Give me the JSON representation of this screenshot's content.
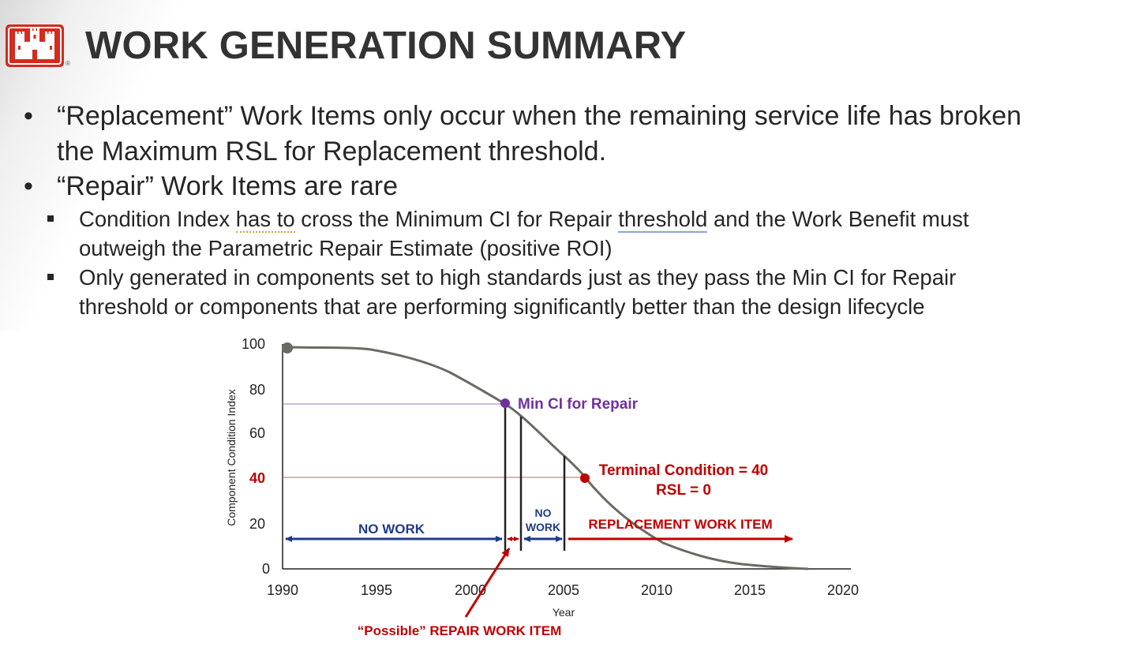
{
  "slide": {
    "title": "WORK GENERATION SUMMARY",
    "logo_icon": "castle-icon",
    "logo_mark": "®",
    "accent_color": "#d52b1e"
  },
  "bullets": {
    "b1_line1": "“Replacement” Work Items only occur when the remaining service life has broken",
    "b1_line2": "the Maximum RSL for Replacement threshold.",
    "b2": "“Repair” Work Items are rare",
    "b2a_part1": "Condition Index ",
    "b2a_dotted": "has to",
    "b2a_part2": " cross the Minimum CI for Repair ",
    "b2a_underlined": "threshold",
    "b2a_part3": " and the Work Benefit must",
    "b2a_line2": "outweigh the Parametric Repair Estimate (positive ROI)",
    "b2b_line1": "Only generated in components set to high standards just as they pass the Min CI for Repair",
    "b2b_line2": "threshold or components that are performing significantly better than the design lifecycle"
  },
  "diagram": {
    "ylabel": "Component Condition Index",
    "xlabel": "Year",
    "y_ticks": [
      "100",
      "80",
      "60",
      "40",
      "20",
      "0"
    ],
    "x_ticks": [
      "1990",
      "1995",
      "2000",
      "2005",
      "2010",
      "2015",
      "2020"
    ],
    "min_ci_label": "Min CI for Repair",
    "terminal_line1": "Terminal Condition = 40",
    "terminal_line2": "RSL = 0",
    "no_work_1": "NO WORK",
    "no_work_2a": "NO",
    "no_work_2b": "WORK",
    "replacement_label": "REPLACEMENT WORK ITEM",
    "possible_repair_label": "“Possible” REPAIR WORK ITEM",
    "colors": {
      "curve": "#6b6b62",
      "purple": "#7030a0",
      "red": "#c00000",
      "blue": "#1f3b8a"
    }
  }
}
